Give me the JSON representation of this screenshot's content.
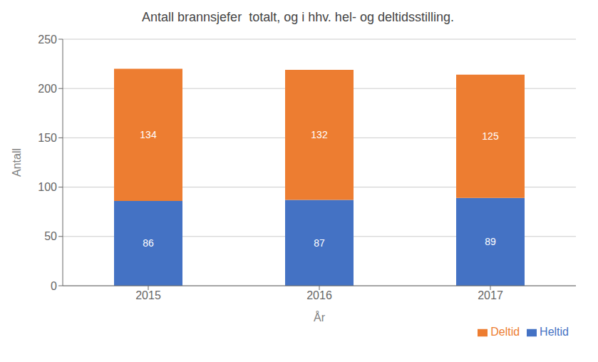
{
  "chart_data": {
    "type": "bar",
    "title": "Antall brannsjefer  totalt, og i hhv. hel- og deltidsstilling.",
    "xlabel": "År",
    "ylabel": "Antall",
    "categories": [
      "2015",
      "2016",
      "2017"
    ],
    "series": [
      {
        "name": "Heltid",
        "color": "#4472C4",
        "values": [
          86,
          87,
          89
        ]
      },
      {
        "name": "Deltid",
        "color": "#ED7D31",
        "values": [
          134,
          132,
          125
        ]
      }
    ],
    "stacked": true,
    "ylim": [
      0,
      250
    ],
    "yticks": [
      0,
      50,
      100,
      150,
      200,
      250
    ],
    "grid": true,
    "data_labels": true,
    "legend": "lower right"
  }
}
